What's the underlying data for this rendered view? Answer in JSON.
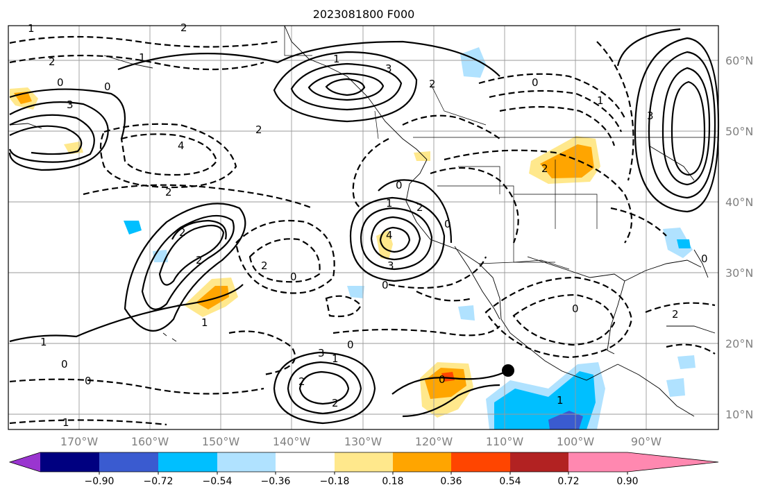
{
  "title": "2023081800 F000",
  "map": {
    "lat_ticks": [
      "60°N",
      "50°N",
      "40°N",
      "30°N",
      "20°N",
      "10°N"
    ],
    "lon_ticks": [
      "170°W",
      "160°W",
      "150°W",
      "140°W",
      "130°W",
      "120°W",
      "110°W",
      "100°W",
      "90°W"
    ],
    "contour_labels": [
      "1",
      "2",
      "0",
      "3",
      "4",
      "1",
      "0",
      "2",
      "3",
      "1",
      "2",
      "0",
      "2",
      "3",
      "0",
      "2",
      "2",
      "1",
      "2",
      "4",
      "3",
      "0",
      "2",
      "0",
      "1",
      "0",
      "2",
      "2",
      "0",
      "0",
      "1",
      "0",
      "3",
      "2",
      "1",
      "1",
      "2",
      "0",
      "0",
      "1",
      "2",
      "0",
      "1"
    ],
    "storm_marker": "black-dot"
  },
  "colorbar": {
    "labels": [
      "−0.90",
      "−0.72",
      "−0.54",
      "−0.36",
      "−0.18",
      "0.18",
      "0.36",
      "0.54",
      "0.72",
      "0.90"
    ],
    "colors": [
      "#9a35d0",
      "#000080",
      "#3a5bd0",
      "#00bfff",
      "#b0e2ff",
      "#ffffff",
      "#ffe88c",
      "#ffa500",
      "#ff4500",
      "#b22222",
      "#ff88b0"
    ]
  }
}
